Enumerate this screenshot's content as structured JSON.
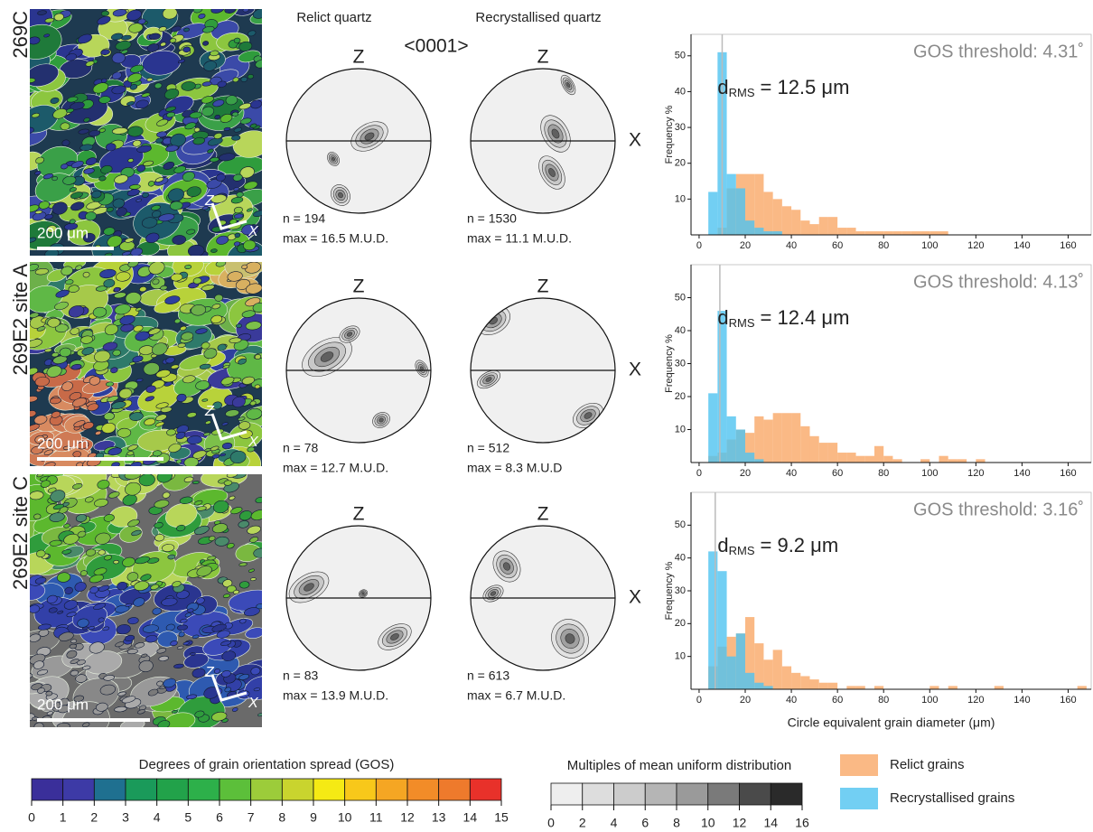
{
  "maps": [
    {
      "label": "269C",
      "scale": "200 μm"
    },
    {
      "label": "269E2 site A",
      "scale": "200 μm"
    },
    {
      "label": "269E2 site C",
      "scale": "200 μm"
    }
  ],
  "pole_figures": {
    "projection": "<0001>",
    "columns": [
      "Relict quartz",
      "Recrystallised quartz"
    ],
    "z_label": "Z",
    "x_label": "X",
    "rows": [
      [
        {
          "n": "n = 194",
          "max": "max = 16.5 M.U.D."
        },
        {
          "n": "n = 1530",
          "max": "max = 11.1 M.U.D."
        }
      ],
      [
        {
          "n": "n = 78",
          "max": "max = 12.7 M.U.D."
        },
        {
          "n": "n = 512",
          "max": "max = 8.3 M.U.D"
        }
      ],
      [
        {
          "n": "n = 83",
          "max": "max = 13.9 M.U.D."
        },
        {
          "n": "n = 613",
          "max": "max = 6.7 M.U.D."
        }
      ]
    ]
  },
  "chart_data": [
    {
      "type": "histogram",
      "annotation": "GOS threshold: 4.31˚",
      "stat": {
        "symbol": "d",
        "subscript": "RMS",
        "text": "= 12.5 μm"
      },
      "marker_x": 10,
      "ylabel": "Frequency %",
      "bins": [
        4,
        8,
        12,
        16,
        20,
        24,
        28,
        32,
        36,
        40,
        44,
        48,
        52,
        56,
        60,
        64,
        68,
        72,
        76,
        80,
        84,
        88,
        92,
        96,
        100,
        104,
        108
      ],
      "series": [
        {
          "name": "Relict grains",
          "color": "#f9a866",
          "values": [
            0,
            2,
            13,
            17,
            17,
            17,
            12,
            10,
            8,
            7,
            4,
            3,
            5,
            5,
            2,
            2,
            1,
            1,
            1,
            1,
            1,
            1,
            1,
            1,
            1,
            1
          ]
        },
        {
          "name": "Recrystallised grains",
          "color": "#4fc3f0",
          "values": [
            12,
            51,
            17,
            13,
            4,
            2,
            1,
            1,
            0,
            0,
            0,
            0,
            0,
            0,
            0,
            0,
            0,
            0,
            0,
            0,
            0,
            0,
            0,
            0,
            0,
            0
          ]
        }
      ],
      "xlim": [
        -3.5,
        170
      ],
      "ylim": [
        0,
        56
      ],
      "xticks": [
        0,
        20,
        40,
        60,
        80,
        100,
        120,
        140,
        160
      ],
      "yticks": [
        10,
        20,
        30,
        40,
        50
      ]
    },
    {
      "type": "histogram",
      "annotation": "GOS threshold: 4.13˚",
      "stat": {
        "symbol": "d",
        "subscript": "RMS",
        "text": "= 12.4 μm"
      },
      "marker_x": 9,
      "ylabel": "Frequency %",
      "bins": [
        4,
        8,
        12,
        16,
        20,
        24,
        28,
        32,
        36,
        40,
        44,
        48,
        52,
        56,
        60,
        64,
        68,
        72,
        76,
        80,
        84,
        88,
        92,
        96,
        100,
        104,
        108,
        112,
        116,
        120,
        124
      ],
      "series": [
        {
          "name": "Relict grains",
          "color": "#f9a866",
          "values": [
            2,
            3,
            7,
            10,
            9,
            14,
            13,
            15,
            15,
            15,
            11,
            8,
            6,
            6,
            3,
            3,
            2,
            2,
            5,
            2,
            1,
            0,
            0,
            1,
            0,
            2,
            1,
            1,
            0,
            1
          ]
        },
        {
          "name": "Recrystallised grains",
          "color": "#4fc3f0",
          "values": [
            21,
            46,
            14,
            10,
            3,
            1,
            0,
            0,
            0,
            0,
            0,
            0,
            0,
            0,
            0,
            0,
            0,
            0,
            0,
            0,
            0,
            0,
            0,
            0,
            0,
            0,
            0,
            0,
            0,
            0
          ]
        }
      ],
      "xlim": [
        -3.5,
        170
      ],
      "ylim": [
        0,
        60
      ],
      "xticks": [
        0,
        20,
        40,
        60,
        80,
        100,
        120,
        140,
        160
      ],
      "yticks": [
        10,
        20,
        30,
        40,
        50
      ]
    },
    {
      "type": "histogram",
      "annotation": "GOS threshold: 3.16˚",
      "stat": {
        "symbol": "d",
        "subscript": "RMS",
        "text": "= 9.2 μm"
      },
      "marker_x": 7,
      "ylabel": "Frequency %",
      "xlabel": "Circle equivalent grain diameter (μm)",
      "bins": [
        4,
        8,
        12,
        16,
        20,
        24,
        28,
        32,
        36,
        40,
        44,
        48,
        52,
        56,
        60,
        64,
        68,
        72,
        76,
        80,
        84,
        88,
        92,
        96,
        100,
        104,
        108,
        112,
        116,
        120,
        124,
        128,
        132,
        136,
        140,
        144,
        148,
        152,
        156,
        160,
        164,
        168
      ],
      "series": [
        {
          "name": "Relict grains",
          "color": "#f9a866",
          "values": [
            7,
            13,
            16,
            17,
            22,
            14,
            9,
            12,
            7,
            5,
            4,
            3,
            2,
            2,
            0,
            1,
            1,
            0,
            1,
            0,
            0,
            0,
            0,
            0,
            1,
            0,
            1,
            0,
            0,
            0,
            0,
            1,
            0,
            0,
            0,
            0,
            0,
            0,
            0,
            0,
            1
          ]
        },
        {
          "name": "Recrystallised grains",
          "color": "#4fc3f0",
          "values": [
            42,
            36,
            10,
            17,
            5,
            2,
            1,
            0,
            0,
            0,
            0,
            0,
            0,
            0,
            0,
            0,
            0,
            0,
            0,
            0,
            0,
            0,
            0,
            0,
            0,
            0,
            0,
            0,
            0,
            0,
            0,
            0,
            0,
            0,
            0,
            0,
            0,
            0,
            0,
            0,
            0
          ]
        }
      ],
      "xlim": [
        -3.5,
        170
      ],
      "ylim": [
        0,
        60
      ],
      "xticks": [
        0,
        20,
        40,
        60,
        80,
        100,
        120,
        140,
        160
      ],
      "yticks": [
        10,
        20,
        30,
        40,
        50
      ]
    }
  ],
  "gos_colorbar": {
    "title": "Degrees of grain orientation spread (GOS)",
    "ticks": [
      0,
      1,
      2,
      3,
      4,
      5,
      6,
      7,
      8,
      9,
      10,
      11,
      12,
      13,
      14,
      15
    ],
    "colors": [
      "#3a2f9a",
      "#3d3aa6",
      "#1f7090",
      "#1a9a5a",
      "#22a24a",
      "#2db04a",
      "#5cbf3a",
      "#9ccc3a",
      "#c9d42e",
      "#f5ea14",
      "#f8c81a",
      "#f5a623",
      "#f28c28",
      "#ee7a2c",
      "#e8312a"
    ]
  },
  "mud_colorbar": {
    "title": "Multiples of mean uniform distribution",
    "ticks": [
      0,
      2,
      4,
      6,
      8,
      10,
      12,
      14,
      16
    ],
    "colors": [
      "#eeeeee",
      "#dddddd",
      "#cccccc",
      "#b5b5b5",
      "#9a9a9a",
      "#7a7a7a",
      "#4a4a4a",
      "#2a2a2a"
    ]
  }
}
